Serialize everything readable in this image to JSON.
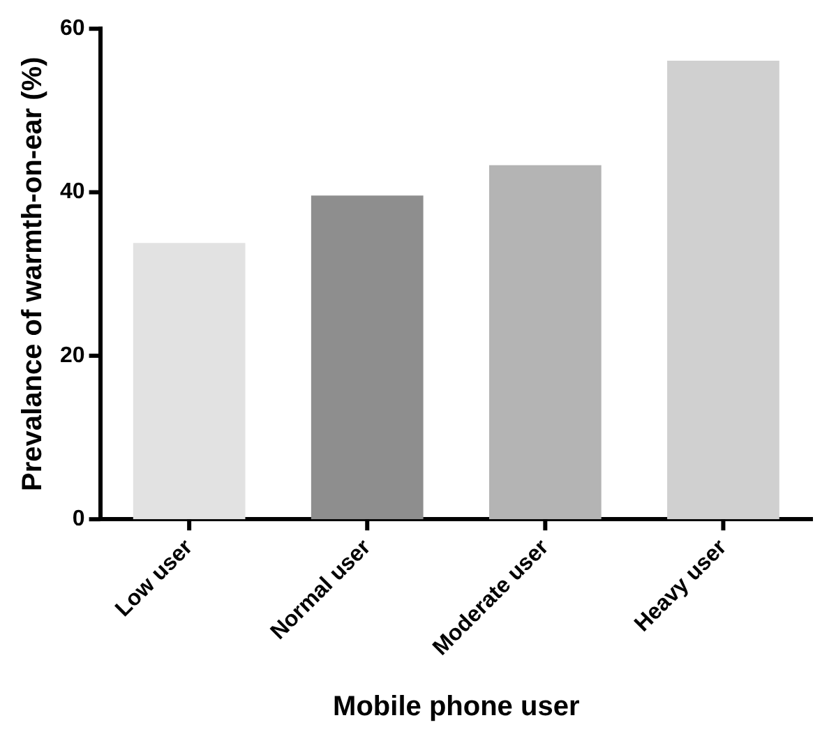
{
  "chart_data": {
    "type": "bar",
    "xlabel": "Mobile phone user",
    "ylabel": "Prevalance of warmth-on-ear (%)",
    "categories": [
      "Low user",
      "Normal user",
      "Moderate user",
      "Heavy user"
    ],
    "values": [
      33.8,
      39.6,
      43.3,
      56.1
    ],
    "colors": [
      "#e2e2e2",
      "#8e8e8e",
      "#b4b4b4",
      "#d0d0d0"
    ],
    "ylim": [
      0,
      60
    ],
    "yticks": [
      0,
      20,
      40,
      60
    ],
    "grid": false,
    "legend": false
  }
}
